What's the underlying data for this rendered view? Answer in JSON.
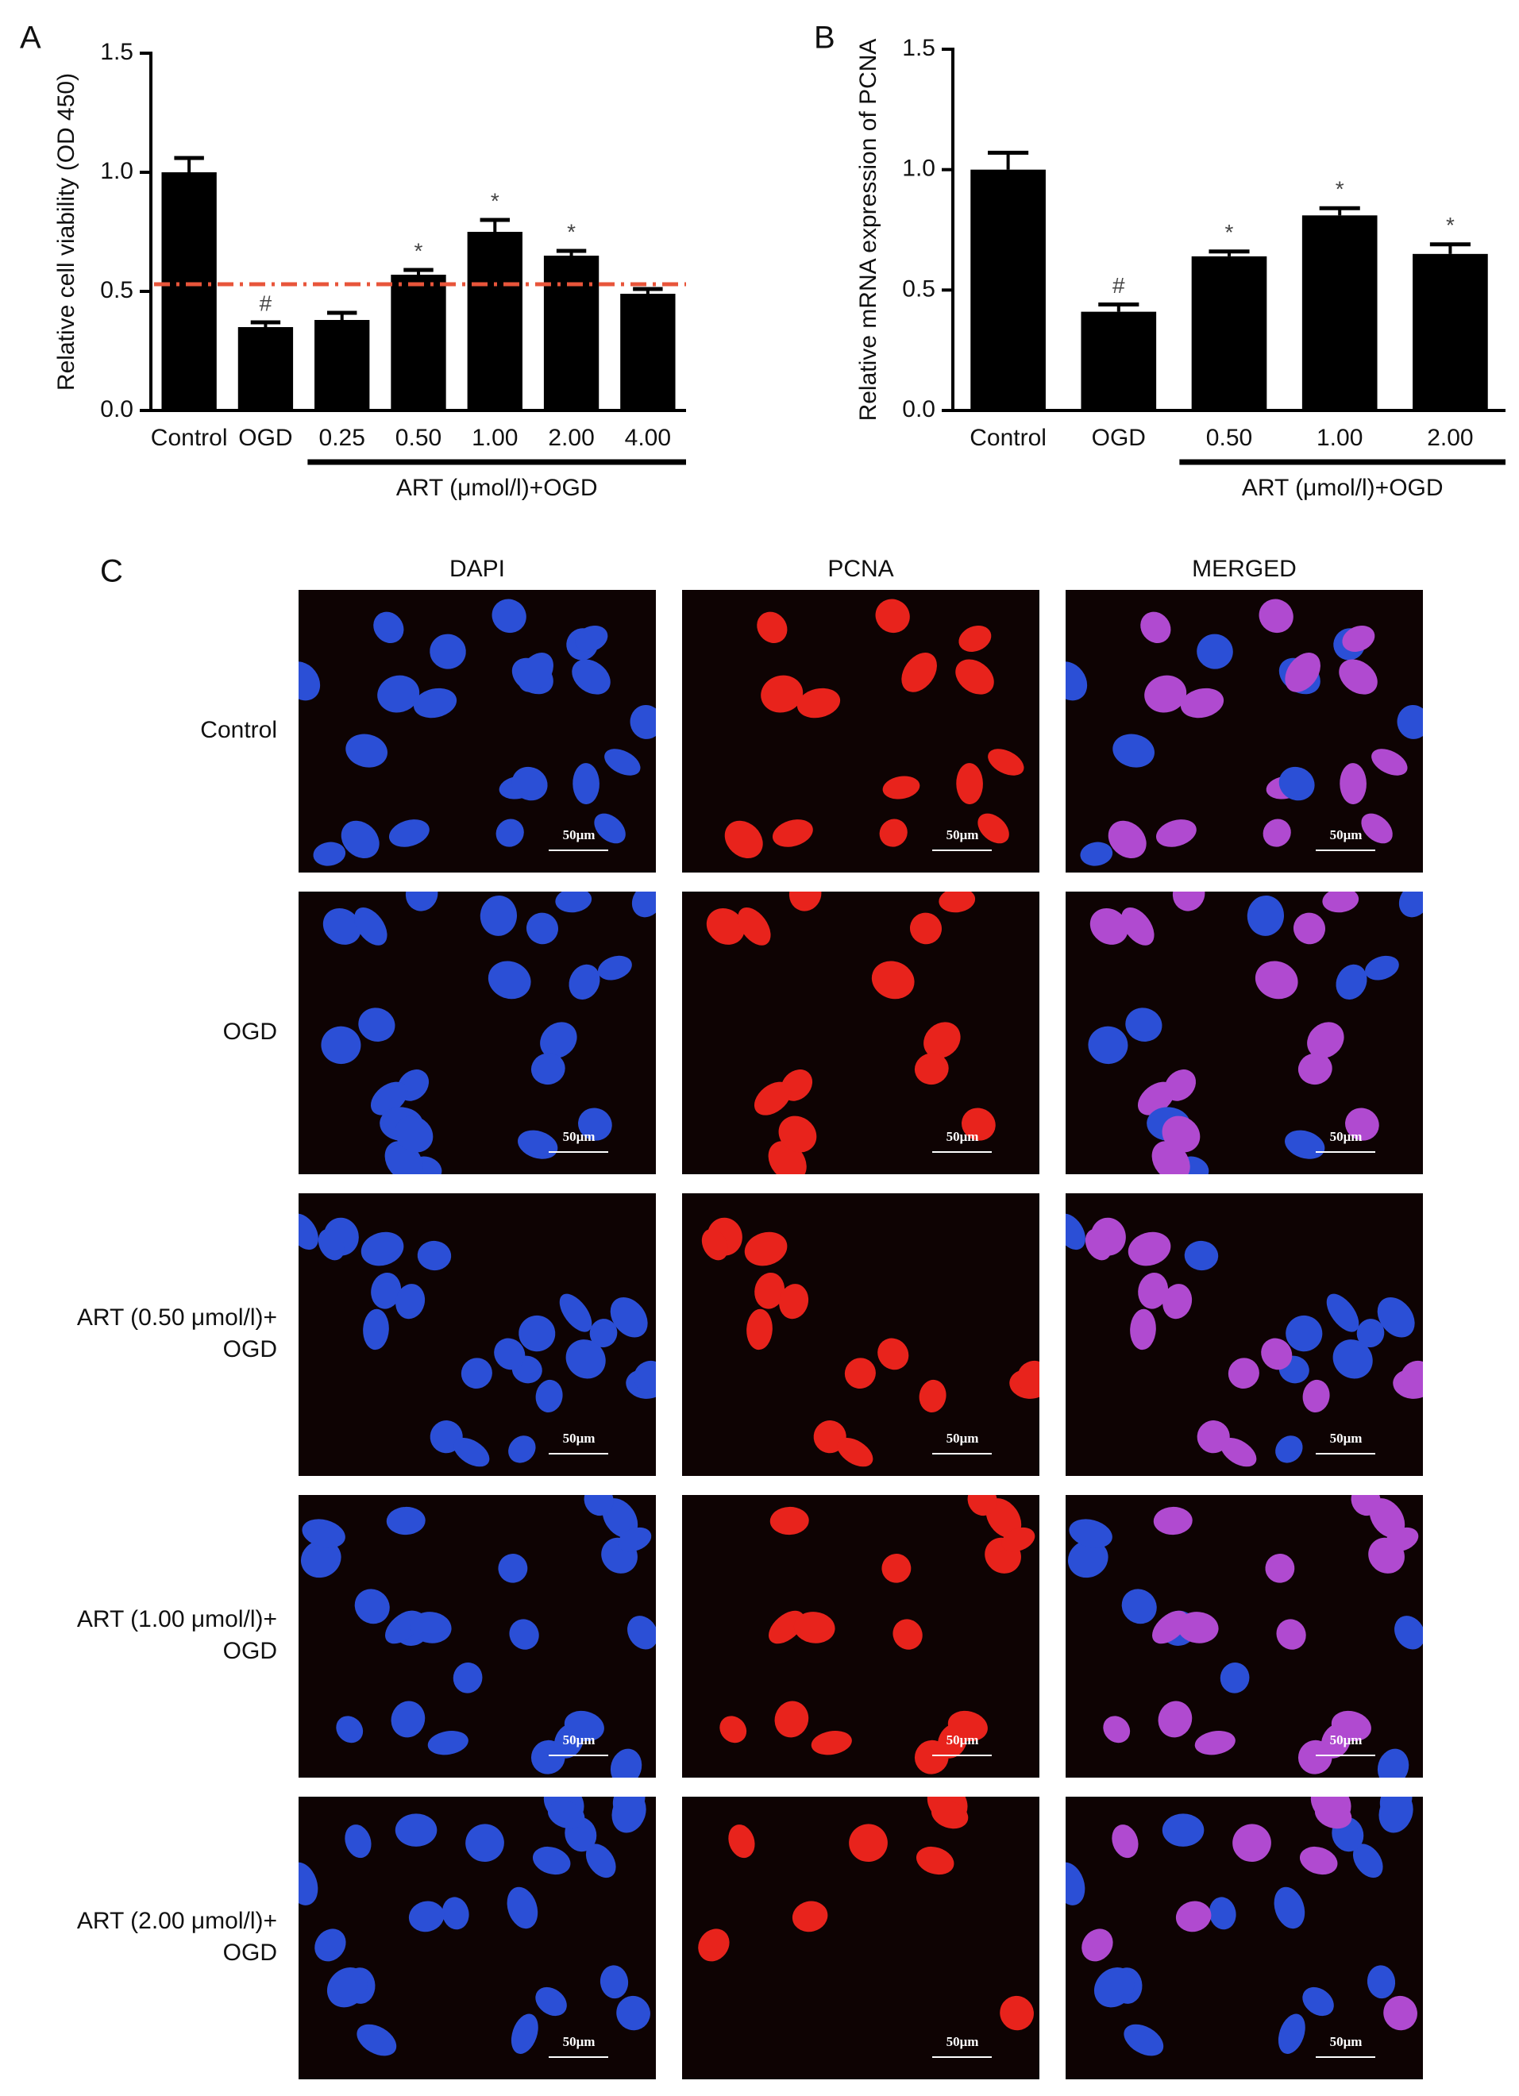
{
  "chart_data": [
    {
      "type": "bar",
      "label": "A",
      "ylabel": "Relative cell viability (OD 450)",
      "categories": [
        "Control",
        "OGD",
        "0.25",
        "0.50",
        "1.00",
        "2.00",
        "4.00"
      ],
      "values": [
        1.0,
        0.35,
        0.38,
        0.57,
        0.75,
        0.65,
        0.49
      ],
      "errors": [
        0.06,
        0.02,
        0.03,
        0.02,
        0.05,
        0.02,
        0.02
      ],
      "markers": [
        null,
        "#",
        null,
        "*",
        "*",
        "*",
        null
      ],
      "color": "#000000",
      "reference_line": {
        "value": 0.53,
        "color": "#e8553a",
        "style": "dashdot"
      },
      "group": {
        "label": "ART (μmol/l)+OGD",
        "span": [
          2,
          6
        ]
      },
      "ylim": [
        0,
        1.5
      ],
      "yticks": [
        {
          "value": 0,
          "label": "0.0"
        },
        {
          "value": 0.5,
          "label": "0.5"
        },
        {
          "value": 1,
          "label": "1.0"
        },
        {
          "value": 1.5,
          "label": "1.5"
        }
      ]
    },
    {
      "type": "bar",
      "label": "B",
      "ylabel": "Relative mRNA expression of PCNA",
      "categories": [
        "Control",
        "OGD",
        "0.50",
        "1.00",
        "2.00"
      ],
      "values": [
        1.0,
        0.41,
        0.64,
        0.81,
        0.65
      ],
      "errors": [
        0.07,
        0.03,
        0.02,
        0.03,
        0.04
      ],
      "markers": [
        null,
        "#",
        "*",
        "*",
        "*"
      ],
      "color": "#000000",
      "group": {
        "label": "ART (μmol/l)+OGD",
        "span": [
          2,
          4
        ]
      },
      "ylim": [
        0,
        1.5
      ],
      "yticks": [
        {
          "value": 0,
          "label": "0.0"
        },
        {
          "value": 0.5,
          "label": "0.5"
        },
        {
          "value": 1,
          "label": "1.0"
        },
        {
          "value": 1.5,
          "label": "1.5"
        }
      ]
    }
  ],
  "panel_c": {
    "label": "C",
    "columns": [
      "DAPI",
      "PCNA",
      "MERGED"
    ],
    "rows": [
      [
        "Control"
      ],
      [
        "OGD"
      ],
      [
        "ART (0.50 μmol/l)+",
        "OGD"
      ],
      [
        "ART (1.00 μmol/l)+",
        "OGD"
      ],
      [
        "ART (2.00 μmol/l)+",
        "OGD"
      ]
    ],
    "scale_bar": "50μm"
  }
}
